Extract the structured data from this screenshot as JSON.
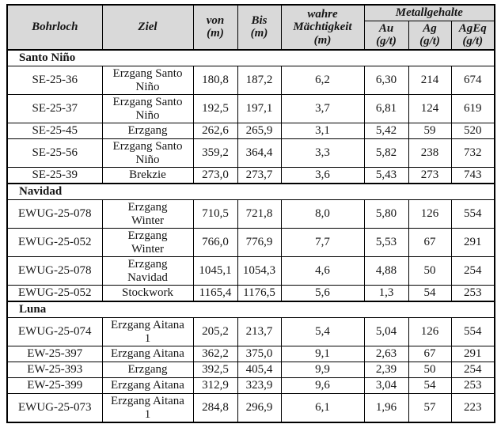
{
  "table": {
    "metal_group_label": "Metallgehalte",
    "columns": [
      {
        "key": "bohrloch",
        "label": "Bohrloch"
      },
      {
        "key": "ziel",
        "label": "Ziel"
      },
      {
        "key": "von",
        "label": "von\n(m)"
      },
      {
        "key": "bis",
        "label": "Bis\n(m)"
      },
      {
        "key": "maechtigkeit",
        "label": "wahre\nMächtigkeit\n(m)"
      },
      {
        "key": "au",
        "label": "Au\n(g/t)"
      },
      {
        "key": "ag",
        "label": "Ag\n(g/t)"
      },
      {
        "key": "ageq",
        "label": "AgEq\n(g/t)"
      }
    ],
    "sections": [
      {
        "name": "Santo Niño",
        "rows": [
          {
            "bohrloch": "SE-25-36",
            "ziel": "Erzgang Santo\nNiño",
            "von": "180,8",
            "bis": "187,2",
            "maechtigkeit": "6,2",
            "au": "6,30",
            "ag": "214",
            "ageq": "674"
          },
          {
            "bohrloch": "SE-25-37",
            "ziel": "Erzgang Santo\nNiño",
            "von": "192,5",
            "bis": "197,1",
            "maechtigkeit": "3,7",
            "au": "6,81",
            "ag": "124",
            "ageq": "619"
          },
          {
            "bohrloch": "SE-25-45",
            "ziel": "Erzgang",
            "von": "262,6",
            "bis": "265,9",
            "maechtigkeit": "3,1",
            "au": "5,42",
            "ag": "59",
            "ageq": "520"
          },
          {
            "bohrloch": "SE-25-56",
            "ziel": "Erzgang Santo\nNiño",
            "von": "359,2",
            "bis": "364,4",
            "maechtigkeit": "3,3",
            "au": "5,82",
            "ag": "238",
            "ageq": "732"
          },
          {
            "bohrloch": "SE-25-39",
            "ziel": "Brekzie",
            "von": "273,0",
            "bis": "273,7",
            "maechtigkeit": "3,6",
            "au": "5,43",
            "ag": "273",
            "ageq": "743"
          }
        ]
      },
      {
        "name": "Navidad",
        "rows": [
          {
            "bohrloch": "EWUG-25-078",
            "ziel": "Erzgang\nWinter",
            "von": "710,5",
            "bis": "721,8",
            "maechtigkeit": "8,0",
            "au": "5,80",
            "ag": "126",
            "ageq": "554"
          },
          {
            "bohrloch": "EWUG-25-052",
            "ziel": "Erzgang\nWinter",
            "von": "766,0",
            "bis": "776,9",
            "maechtigkeit": "7,7",
            "au": "5,53",
            "ag": "67",
            "ageq": "291"
          },
          {
            "bohrloch": "EWUG-25-078",
            "ziel": "Erzgang\nNavidad",
            "von": "1045,1",
            "bis": "1054,3",
            "maechtigkeit": "4,6",
            "au": "4,88",
            "ag": "50",
            "ageq": "254"
          },
          {
            "bohrloch": "EWUG-25-052",
            "ziel": "Stockwork",
            "von": "1165,4",
            "bis": "1176,5",
            "maechtigkeit": "5,6",
            "au": "1,3",
            "ag": "54",
            "ageq": "253"
          }
        ]
      },
      {
        "name": "Luna",
        "rows": [
          {
            "bohrloch": "EWUG-25-074",
            "ziel": "Erzgang Aitana\n1",
            "von": "205,2",
            "bis": "213,7",
            "maechtigkeit": "5,4",
            "au": "5,04",
            "ag": "126",
            "ageq": "554"
          },
          {
            "bohrloch": "EW-25-397",
            "ziel": "Erzgang Aitana",
            "von": "362,2",
            "bis": "375,0",
            "maechtigkeit": "9,1",
            "au": "2,63",
            "ag": "67",
            "ageq": "291"
          },
          {
            "bohrloch": "EW-25-393",
            "ziel": "Erzgang",
            "von": "392,5",
            "bis": "405,4",
            "maechtigkeit": "9,9",
            "au": "2,39",
            "ag": "50",
            "ageq": "254"
          },
          {
            "bohrloch": "EW-25-399",
            "ziel": "Erzgang Aitana",
            "von": "312,9",
            "bis": "323,9",
            "maechtigkeit": "9,6",
            "au": "3,04",
            "ag": "54",
            "ageq": "253"
          },
          {
            "bohrloch": "EWUG-25-073",
            "ziel": "Erzgang Aitana\n1",
            "von": "284,8",
            "bis": "296,9",
            "maechtigkeit": "6,1",
            "au": "1,96",
            "ag": "57",
            "ageq": "223"
          }
        ]
      }
    ],
    "colors": {
      "header_bg": "#d9d9d9",
      "border": "#000000",
      "text": "#151515",
      "background": "#ffffff"
    }
  }
}
